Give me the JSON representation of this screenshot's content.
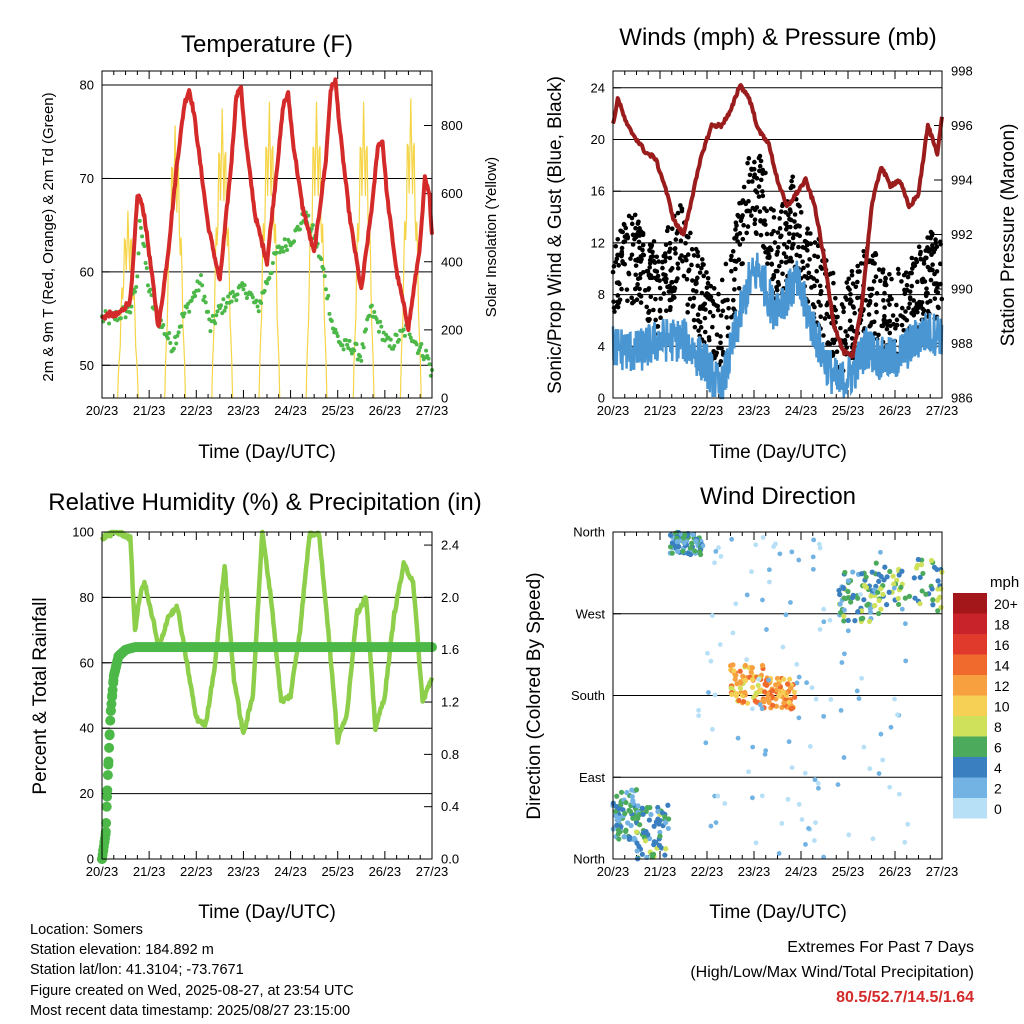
{
  "info": {
    "location": "Location: Somers",
    "elevation": "Station elevation: 184.892 m",
    "latlon": "Station lat/lon: 41.3104; -73.7671",
    "created": "Figure created on Wed, 2025-08-27, at 23:54 UTC",
    "recent": "Most recent data timestamp: 2025/08/27 23:15:00"
  },
  "extremes": {
    "title": "Extremes For Past 7 Days",
    "subtitle": "(High/Low/Max Wind/Total Precipitation)",
    "values": "80.5/52.7/14.5/1.64",
    "color": "#d42a2a"
  },
  "chart_data": [
    {
      "type": "line",
      "title": "Temperature (F)",
      "xlabel": "Time (Day/UTC)",
      "ylabel": "2m & 9m T (Red, Orange) & 2m Td (Green)",
      "y2label": "Solar Insolation (Yellow)",
      "x_ticks": [
        "20/23",
        "21/23",
        "22/23",
        "23/23",
        "24/23",
        "25/23",
        "26/23",
        "27/23"
      ],
      "xlim": [
        0,
        7
      ],
      "ylim": [
        46.5,
        81.5
      ],
      "y_ticks": [
        50,
        60,
        70,
        80
      ],
      "y2lim": [
        0,
        960
      ],
      "y2_ticks": [
        0,
        200,
        400,
        600,
        800
      ],
      "grid": "horizontal",
      "colors": {
        "temp": "#d42a2a",
        "dewpoint": "#4cb848",
        "solar": "#f5d547"
      },
      "series": [
        {
          "name": "2m T (Red)",
          "x": [
            0,
            0.15,
            0.3,
            0.45,
            0.6,
            0.65,
            0.75,
            0.8,
            0.9,
            1.05,
            1.2,
            1.4,
            1.6,
            1.75,
            1.85,
            1.95,
            2.05,
            2.25,
            2.5,
            2.75,
            2.85,
            2.95,
            3.05,
            3.25,
            3.5,
            3.75,
            3.85,
            3.95,
            4.05,
            4.25,
            4.5,
            4.75,
            4.85,
            4.95,
            5.05,
            5.25,
            5.5,
            5.75,
            5.85,
            5.95,
            6.05,
            6.25,
            6.5,
            6.75,
            6.85,
            6.95,
            7.0
          ],
          "values": [
            55,
            55.5,
            55.3,
            56,
            57,
            60,
            68,
            68,
            66,
            60,
            54,
            62,
            72,
            78,
            79.5,
            77,
            73,
            65,
            59,
            72,
            79,
            79.5,
            74,
            66,
            61,
            73,
            78,
            79,
            74,
            67,
            62,
            72,
            79.5,
            80.5,
            75,
            66,
            58,
            68,
            73.5,
            74,
            68,
            60,
            54,
            63,
            70,
            68,
            64
          ]
        },
        {
          "name": "2m Td (Green)",
          "x": [
            0,
            0.2,
            0.4,
            0.6,
            0.75,
            0.8,
            0.9,
            1.0,
            1.1,
            1.3,
            1.5,
            1.7,
            1.9,
            2.1,
            2.3,
            2.5,
            2.7,
            2.9,
            3.1,
            3.3,
            3.5,
            3.7,
            3.9,
            4.1,
            4.3,
            4.5,
            4.7,
            4.9,
            5.1,
            5.3,
            5.5,
            5.7,
            5.9,
            6.1,
            6.3,
            6.5,
            6.7,
            6.9,
            7.0
          ],
          "values": [
            55,
            55,
            55.5,
            56,
            59,
            66,
            62,
            58,
            56,
            54,
            52,
            55,
            57,
            59,
            54,
            56,
            57,
            58,
            58,
            56,
            59,
            62,
            63,
            64,
            66,
            64,
            60,
            54,
            52,
            52,
            51,
            56,
            54,
            52,
            53,
            54,
            52,
            51,
            49
          ]
        }
      ]
    },
    {
      "type": "scatter",
      "title": "Winds (mph) & Pressure (mb)",
      "xlabel": "Time (Day/UTC)",
      "ylabel": "Sonic/Prop Wind & Gust (Blue, Black)",
      "y2label": "Station Pressure (Maroon)",
      "x_ticks": [
        "20/23",
        "21/23",
        "22/23",
        "23/23",
        "24/23",
        "25/23",
        "26/23",
        "27/23"
      ],
      "xlim": [
        0,
        7
      ],
      "ylim": [
        0,
        25.3
      ],
      "y_ticks": [
        0,
        4,
        8,
        12,
        16,
        20,
        24
      ],
      "y2lim": [
        986,
        998
      ],
      "y2_ticks": [
        986,
        988,
        990,
        992,
        994,
        996,
        998
      ],
      "grid": "horizontal",
      "colors": {
        "wind": "#4a96d2",
        "gust": "#000000",
        "pressure": "#9b1c1c"
      },
      "series": [
        {
          "name": "Station Pressure (Maroon)",
          "x": [
            0,
            0.1,
            0.3,
            0.5,
            0.7,
            0.9,
            1.1,
            1.3,
            1.5,
            1.7,
            1.9,
            2.1,
            2.3,
            2.5,
            2.7,
            2.9,
            3.1,
            3.3,
            3.5,
            3.7,
            3.9,
            4.1,
            4.3,
            4.5,
            4.7,
            4.9,
            5.1,
            5.3,
            5.5,
            5.7,
            5.9,
            6.1,
            6.3,
            6.5,
            6.7,
            6.9,
            7.0
          ],
          "values": [
            996,
            997,
            996,
            995.5,
            995,
            994.8,
            993.8,
            992.5,
            992,
            993.5,
            995,
            996,
            996,
            996.5,
            997.5,
            997,
            995.8,
            995.4,
            994,
            993,
            993.5,
            994,
            993,
            991,
            988.7,
            987.7,
            987.5,
            989.5,
            993,
            994.5,
            993.8,
            994,
            993,
            993.5,
            996,
            995,
            996.3
          ]
        }
      ]
    },
    {
      "type": "line",
      "title": "Relative Humidity (%) & Precipitation (in)",
      "xlabel": "Time (Day/UTC)",
      "ylabel": "Percent & Total Rainfall",
      "x_ticks": [
        "20/23",
        "21/23",
        "22/23",
        "23/23",
        "24/23",
        "25/23",
        "26/23",
        "27/23"
      ],
      "xlim": [
        0,
        7
      ],
      "ylim": [
        0,
        100
      ],
      "y_ticks": [
        0,
        20,
        40,
        60,
        80,
        100
      ],
      "y2lim": [
        0,
        2.5
      ],
      "y2_ticks": [
        "0.0",
        "0.4",
        "0.8",
        "1.2",
        "1.6",
        "2.0",
        "2.4"
      ],
      "grid": "horizontal",
      "colors": {
        "rh": "#8dcf4a",
        "precip": "#4cb848"
      },
      "series": [
        {
          "name": "Relative Humidity",
          "x": [
            0,
            0.1,
            0.3,
            0.5,
            0.6,
            0.7,
            0.8,
            0.9,
            1.0,
            1.1,
            1.2,
            1.4,
            1.6,
            1.8,
            2.0,
            2.2,
            2.4,
            2.6,
            2.8,
            3.0,
            3.2,
            3.4,
            3.6,
            3.8,
            4.0,
            4.2,
            4.4,
            4.6,
            4.8,
            5.0,
            5.2,
            5.4,
            5.6,
            5.8,
            6.0,
            6.2,
            6.4,
            6.6,
            6.8,
            6.9,
            7.0
          ],
          "values": [
            98,
            99,
            100,
            99,
            98,
            70,
            80,
            85,
            78,
            72,
            64,
            74,
            77,
            60,
            43,
            41,
            60,
            90,
            55,
            38,
            50,
            100,
            78,
            48,
            50,
            70,
            99,
            100,
            70,
            36,
            45,
            75,
            80,
            40,
            50,
            75,
            90,
            85,
            48,
            52,
            55
          ]
        },
        {
          "name": "Total Rainfall",
          "x": [
            0,
            0.08,
            0.12,
            0.18,
            0.25,
            0.35,
            0.5,
            0.7,
            7.0
          ],
          "values": [
            0.0,
            0.2,
            0.6,
            1.1,
            1.4,
            1.55,
            1.6,
            1.62,
            1.62
          ]
        }
      ]
    },
    {
      "type": "scatter",
      "title": "Wind Direction",
      "xlabel": "Time (Day/UTC)",
      "ylabel": "Direction (Colored By Speed)",
      "x_ticks": [
        "20/23",
        "21/23",
        "22/23",
        "23/23",
        "24/23",
        "25/23",
        "26/23",
        "27/23"
      ],
      "xlim": [
        0,
        7
      ],
      "ylim": [
        0,
        360
      ],
      "y_tick_labels": [
        "North",
        "East",
        "South",
        "West",
        "North"
      ],
      "y_ticks": [
        0,
        90,
        180,
        270,
        360
      ],
      "grid": "horizontal",
      "legend": {
        "title": "mph",
        "position": "right",
        "labels": [
          "20+",
          "18",
          "16",
          "14",
          "12",
          "10",
          "8",
          "6",
          "4",
          "2",
          "0"
        ],
        "colors": [
          "#a3171b",
          "#c8232a",
          "#e03a2d",
          "#f06a2d",
          "#f7a040",
          "#f6cf55",
          "#cfe05a",
          "#4caa5c",
          "#3a7fc0",
          "#72b3e3",
          "#b7e0f7"
        ]
      },
      "clusters": [
        {
          "x_range": [
            0.0,
            0.5
          ],
          "dir_range": [
            20,
            80
          ],
          "speed": 4
        },
        {
          "x_range": [
            0.5,
            1.2
          ],
          "dir_range": [
            0,
            60
          ],
          "speed": 5
        },
        {
          "x_range": [
            1.2,
            1.9
          ],
          "dir_range": [
            335,
            360
          ],
          "speed": 4
        },
        {
          "x_range": [
            2.5,
            3.2
          ],
          "dir_range": [
            170,
            215
          ],
          "speed": 11
        },
        {
          "x_range": [
            3.2,
            3.9
          ],
          "dir_range": [
            165,
            200
          ],
          "speed": 12
        },
        {
          "x_range": [
            4.8,
            5.6
          ],
          "dir_range": [
            260,
            320
          ],
          "speed": 5
        },
        {
          "x_range": [
            5.6,
            7.0
          ],
          "dir_range": [
            270,
            330
          ],
          "speed": 6
        }
      ]
    }
  ]
}
